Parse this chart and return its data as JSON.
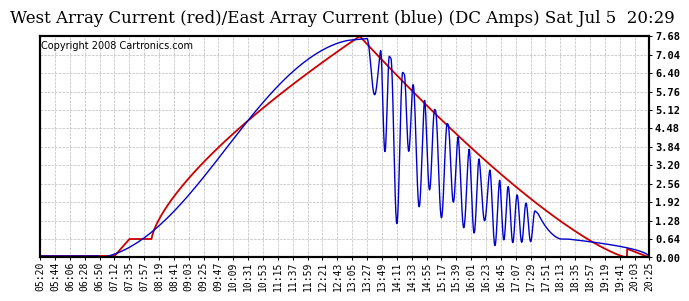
{
  "title": "West Array Current (red)/East Array Current (blue) (DC Amps) Sat Jul 5  20:29",
  "copyright": "Copyright 2008 Cartronics.com",
  "ylabel_ticks": [
    0.0,
    0.64,
    1.28,
    1.92,
    2.56,
    3.2,
    3.84,
    4.48,
    5.12,
    5.76,
    6.4,
    7.04,
    7.68
  ],
  "ylim": [
    0.0,
    7.68
  ],
  "background_color": "#ffffff",
  "grid_color": "#bbbbbb",
  "red_color": "#cc0000",
  "blue_color": "#0000cc",
  "x_labels": [
    "05:20",
    "05:44",
    "06:06",
    "06:28",
    "06:50",
    "07:12",
    "07:35",
    "07:57",
    "08:19",
    "08:41",
    "09:03",
    "09:25",
    "09:47",
    "10:09",
    "10:31",
    "10:53",
    "11:15",
    "11:37",
    "11:59",
    "12:21",
    "12:43",
    "13:05",
    "13:27",
    "13:49",
    "14:11",
    "14:33",
    "14:55",
    "15:17",
    "15:39",
    "16:01",
    "16:23",
    "16:45",
    "17:07",
    "17:29",
    "17:51",
    "18:13",
    "18:35",
    "18:57",
    "19:19",
    "19:41",
    "20:03",
    "20:25"
  ],
  "title_fontsize": 12,
  "tick_fontsize": 7,
  "copyright_fontsize": 7,
  "n_labels": 42
}
